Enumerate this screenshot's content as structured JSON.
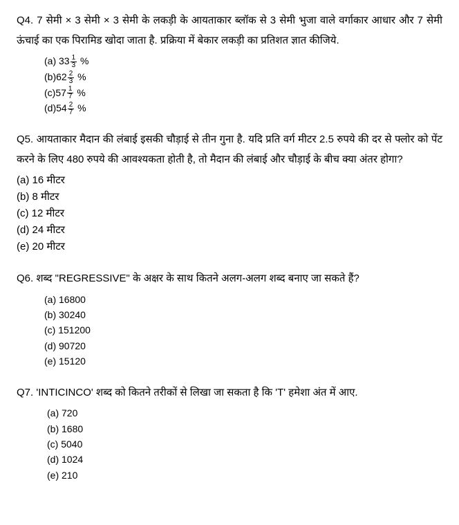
{
  "questions": [
    {
      "label": "Q4.",
      "text": "7 सेमी × 3 सेमी × 3 सेमी के लकड़ी के आयताकार ब्लॉक से 3 सेमी भुजा वाले वर्गाकार आधार और 7 सेमी ऊंचाई का एक पिरामिड खोदा जाता है. प्रक्रिया में बेकार लकड़ी का प्रतिशत ज्ञात कीजिये.",
      "indent_class": "indent-1",
      "option_fontsize": "14px",
      "options": [
        {
          "prefix": "(a) ",
          "whole": "33",
          "num": "1",
          "den": "3",
          "suffix": " %"
        },
        {
          "prefix": "(b)",
          "whole": "62",
          "num": "2",
          "den": "3",
          "suffix": " %"
        },
        {
          "prefix": "(c)",
          "whole": "57",
          "num": "1",
          "den": "7",
          "suffix": " %"
        },
        {
          "prefix": "(d)",
          "whole": "54",
          "num": "2",
          "den": "7",
          "suffix": " %"
        }
      ]
    },
    {
      "label": "Q5.",
      "text": "आयताकार मैदान की लंबाई इसकी चौड़ाई से तीन गुना है. यदि प्रति वर्ग मीटर 2.5 रुपये की दर से फ्लोर को पेंट करने के लिए 480 रुपये की आवश्यकता होती है, तो मैदान की लंबाई और चौड़ाई के बीच क्या अंतर होगा?",
      "indent_class": "indent-0",
      "option_fontsize": "15px",
      "options": [
        {
          "text": "(a) 16 मीटर"
        },
        {
          "text": "(b) 8 मीटर"
        },
        {
          "text": "(c) 12 मीटर"
        },
        {
          "text": "(d) 24 मीटर"
        },
        {
          "text": "(e) 20 मीटर"
        }
      ]
    },
    {
      "label": "Q6.",
      "text": " शब्द \"REGRESSIVE\" के अक्षर के साथ कितने अलग-अलग शब्द बनाए जा सकते हैं?",
      "indent_class": "indent-1",
      "option_fontsize": "14px",
      "options": [
        {
          "text": "(a) 16800"
        },
        {
          "text": "(b) 30240"
        },
        {
          "text": "(c) 151200"
        },
        {
          "text": "(d) 90720"
        },
        {
          "text": " (e) 15120"
        }
      ]
    },
    {
      "label": "Q7.",
      "text": "  'INTICINCO' शब्द को कितने तरीकों से लिखा जा सकता है कि 'T' हमेशा अंत में आए.",
      "indent_class": "indent-2",
      "option_fontsize": "14px",
      "options": [
        {
          "text": "(a) 720"
        },
        {
          "text": "(b) 1680"
        },
        {
          "text": "(c) 5040"
        },
        {
          "text": "(d) 1024"
        },
        {
          "text": "(e) 210"
        }
      ]
    }
  ]
}
